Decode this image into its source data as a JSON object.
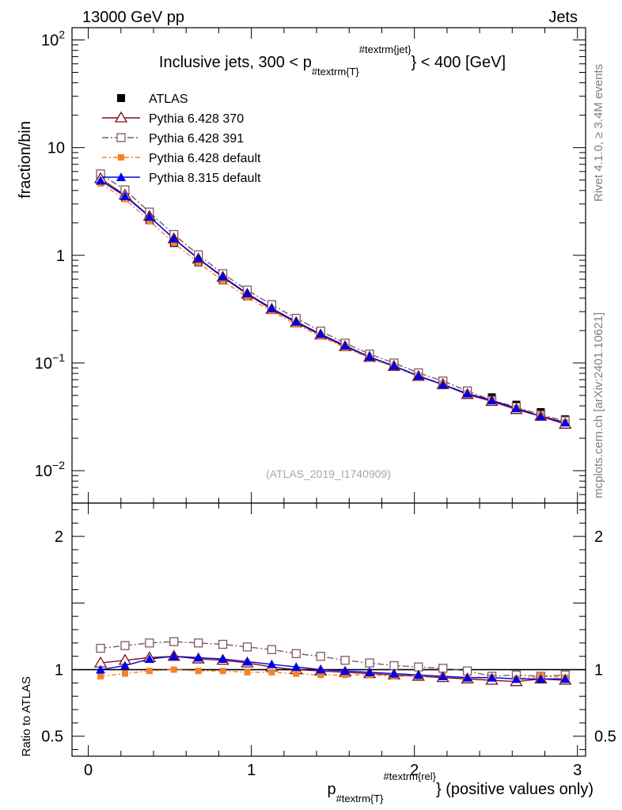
{
  "header": {
    "left": "13000 GeV pp",
    "right": "Jets"
  },
  "side_labels": {
    "top": "Rivet 4.1.0, ≥ 3.4M events",
    "bottom": "mcplots.cern.ch [arXiv:2401.10621]"
  },
  "chart_data": {
    "type": "scatter",
    "title": "Inclusive jets, 300 < p_{#textrm{T}}^{#textrm{jet}} < 400 [GeV]",
    "title_parts": {
      "pre": "Inclusive jets, 300 < p",
      "sub": "#textrm{T}",
      "sup": "#textrm{jet}",
      "post": "} < 400 [GeV]"
    },
    "watermark": "(ATLAS_2019_I1740909)",
    "xlabel_parts": {
      "pre": "p",
      "sub": "#textrm{T}",
      "sup": "#textrm{rel}",
      "post": "} (positive values only)"
    },
    "ylabel_main": "fraction/bin",
    "ylabel_ratio": "Ratio to ATLAS",
    "xlim": [
      -0.1,
      3.05
    ],
    "ylim_main": [
      0.005,
      130
    ],
    "ylim_ratio": [
      0.35,
      2.25
    ],
    "x_ticks": [
      "0",
      "1",
      "2",
      "3"
    ],
    "y_ticks_main": [
      {
        "base": "10",
        "exp": "2",
        "value": 100
      },
      {
        "base": "10",
        "exp": "",
        "value": 10
      },
      {
        "base": "1",
        "exp": "",
        "value": 1
      },
      {
        "base": "10",
        "exp": "−1",
        "value": 0.1
      },
      {
        "base": "10",
        "exp": "−2",
        "value": 0.01
      }
    ],
    "y_ticks_ratio": [
      "0.5",
      "1",
      "2"
    ],
    "x": [
      0.075,
      0.225,
      0.375,
      0.525,
      0.675,
      0.825,
      0.975,
      1.125,
      1.275,
      1.425,
      1.575,
      1.725,
      1.875,
      2.025,
      2.175,
      2.325,
      2.475,
      2.625,
      2.775,
      2.925
    ],
    "series": [
      {
        "name": "ATLAS",
        "color": "#000000",
        "style": "data",
        "values": [
          4.9,
          3.45,
          2.12,
          1.3,
          0.86,
          0.585,
          0.415,
          0.31,
          0.237,
          0.185,
          0.146,
          0.116,
          0.097,
          0.079,
          0.067,
          0.055,
          0.048,
          0.041,
          0.035,
          0.03
        ],
        "ratio": [
          1,
          1,
          1,
          1,
          1,
          1,
          1,
          1,
          1,
          1,
          1,
          1,
          1,
          1,
          1,
          1,
          1,
          1,
          1,
          1
        ]
      },
      {
        "name": "Pythia 6.428 370",
        "color": "#7b0f1a",
        "style": "open-triangle",
        "values": [
          5.15,
          3.62,
          2.3,
          1.42,
          0.925,
          0.625,
          0.435,
          0.315,
          0.237,
          0.182,
          0.142,
          0.113,
          0.093,
          0.075,
          0.063,
          0.051,
          0.044,
          0.037,
          0.032,
          0.027
        ],
        "ratio": [
          1.05,
          1.07,
          1.09,
          1.1,
          1.08,
          1.07,
          1.05,
          1.02,
          1.0,
          0.99,
          0.98,
          0.97,
          0.96,
          0.95,
          0.94,
          0.93,
          0.92,
          0.91,
          0.93,
          0.92
        ]
      },
      {
        "name": "Pythia 6.428 391",
        "color": "#7d5a60",
        "style": "open-square",
        "values": [
          5.7,
          4.05,
          2.52,
          1.56,
          1.01,
          0.675,
          0.475,
          0.348,
          0.26,
          0.198,
          0.153,
          0.121,
          0.1,
          0.081,
          0.068,
          0.055,
          0.045,
          0.039,
          0.033,
          0.029
        ],
        "ratio": [
          1.16,
          1.18,
          1.2,
          1.21,
          1.2,
          1.19,
          1.17,
          1.15,
          1.12,
          1.1,
          1.07,
          1.05,
          1.03,
          1.02,
          1.01,
          0.99,
          0.95,
          0.96,
          0.95,
          0.96
        ]
      },
      {
        "name": "Pythia 6.428 default",
        "color": "#f5832a",
        "style": "filled-square",
        "values": [
          4.65,
          3.33,
          2.09,
          1.3,
          0.855,
          0.578,
          0.408,
          0.303,
          0.228,
          0.176,
          0.139,
          0.111,
          0.092,
          0.076,
          0.064,
          0.052,
          0.045,
          0.038,
          0.033,
          0.028
        ],
        "ratio": [
          0.95,
          0.97,
          0.99,
          1.0,
          0.99,
          0.99,
          0.98,
          0.98,
          0.97,
          0.96,
          0.96,
          0.96,
          0.95,
          0.95,
          0.95,
          0.94,
          0.94,
          0.93,
          0.95,
          0.94
        ]
      },
      {
        "name": "Pythia 8.315 default",
        "color": "#0000e6",
        "style": "filled-triangle",
        "values": [
          4.95,
          3.55,
          2.28,
          1.43,
          0.935,
          0.635,
          0.442,
          0.322,
          0.242,
          0.186,
          0.145,
          0.114,
          0.094,
          0.076,
          0.063,
          0.052,
          0.045,
          0.038,
          0.032,
          0.028
        ],
        "ratio": [
          1.0,
          1.03,
          1.08,
          1.1,
          1.09,
          1.08,
          1.06,
          1.04,
          1.02,
          1.0,
          0.99,
          0.98,
          0.97,
          0.96,
          0.95,
          0.94,
          0.94,
          0.93,
          0.93,
          0.93
        ]
      }
    ]
  }
}
